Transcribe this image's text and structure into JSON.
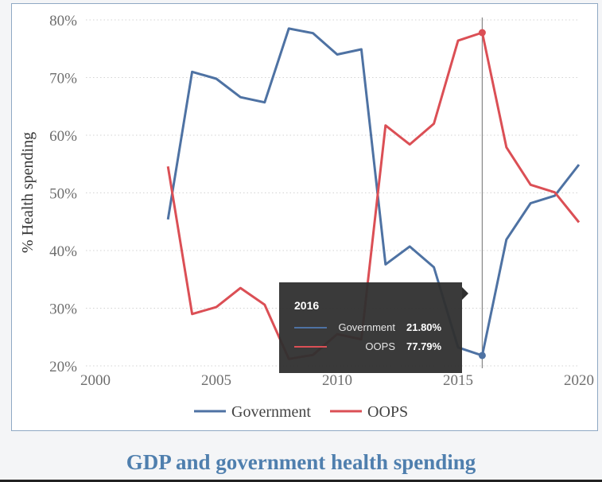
{
  "caption": "GDP and government health spending",
  "chart_data": {
    "type": "line",
    "title": "",
    "xlabel": "",
    "ylabel": "% Health spending",
    "xlim": [
      2000,
      2020
    ],
    "ylim": [
      20,
      80
    ],
    "x_ticks": [
      2000,
      2005,
      2010,
      2015,
      2020
    ],
    "y_ticks": [
      20,
      30,
      40,
      50,
      60,
      70,
      80
    ],
    "y_tick_labels": [
      "20%",
      "30%",
      "40%",
      "50%",
      "60%",
      "70%",
      "80%"
    ],
    "grid": "horizontal-dotted",
    "legend_position": "bottom",
    "x": [
      2003,
      2004,
      2005,
      2006,
      2007,
      2008,
      2009,
      2010,
      2011,
      2012,
      2013,
      2014,
      2015,
      2016,
      2017,
      2018,
      2019,
      2020
    ],
    "series": [
      {
        "name": "Government",
        "color": "#4e72a3",
        "values": [
          45.4,
          71.0,
          69.8,
          66.6,
          65.7,
          78.5,
          77.7,
          74.0,
          74.9,
          37.6,
          40.7,
          37.1,
          23.2,
          21.8,
          41.9,
          48.2,
          49.5,
          54.9
        ]
      },
      {
        "name": "OOPS",
        "color": "#db4f55",
        "values": [
          54.6,
          29.0,
          30.2,
          33.5,
          30.6,
          21.2,
          21.9,
          25.5,
          24.6,
          61.7,
          58.4,
          62.0,
          76.4,
          77.79,
          57.9,
          51.4,
          50.1,
          44.9
        ]
      }
    ],
    "hover": {
      "x": 2016,
      "title": "2016",
      "rows": [
        {
          "name": "Government",
          "value": "21.80%",
          "color": "#4e72a3"
        },
        {
          "name": "OOPS",
          "value": "77.79%",
          "color": "#db4f55"
        }
      ]
    }
  }
}
